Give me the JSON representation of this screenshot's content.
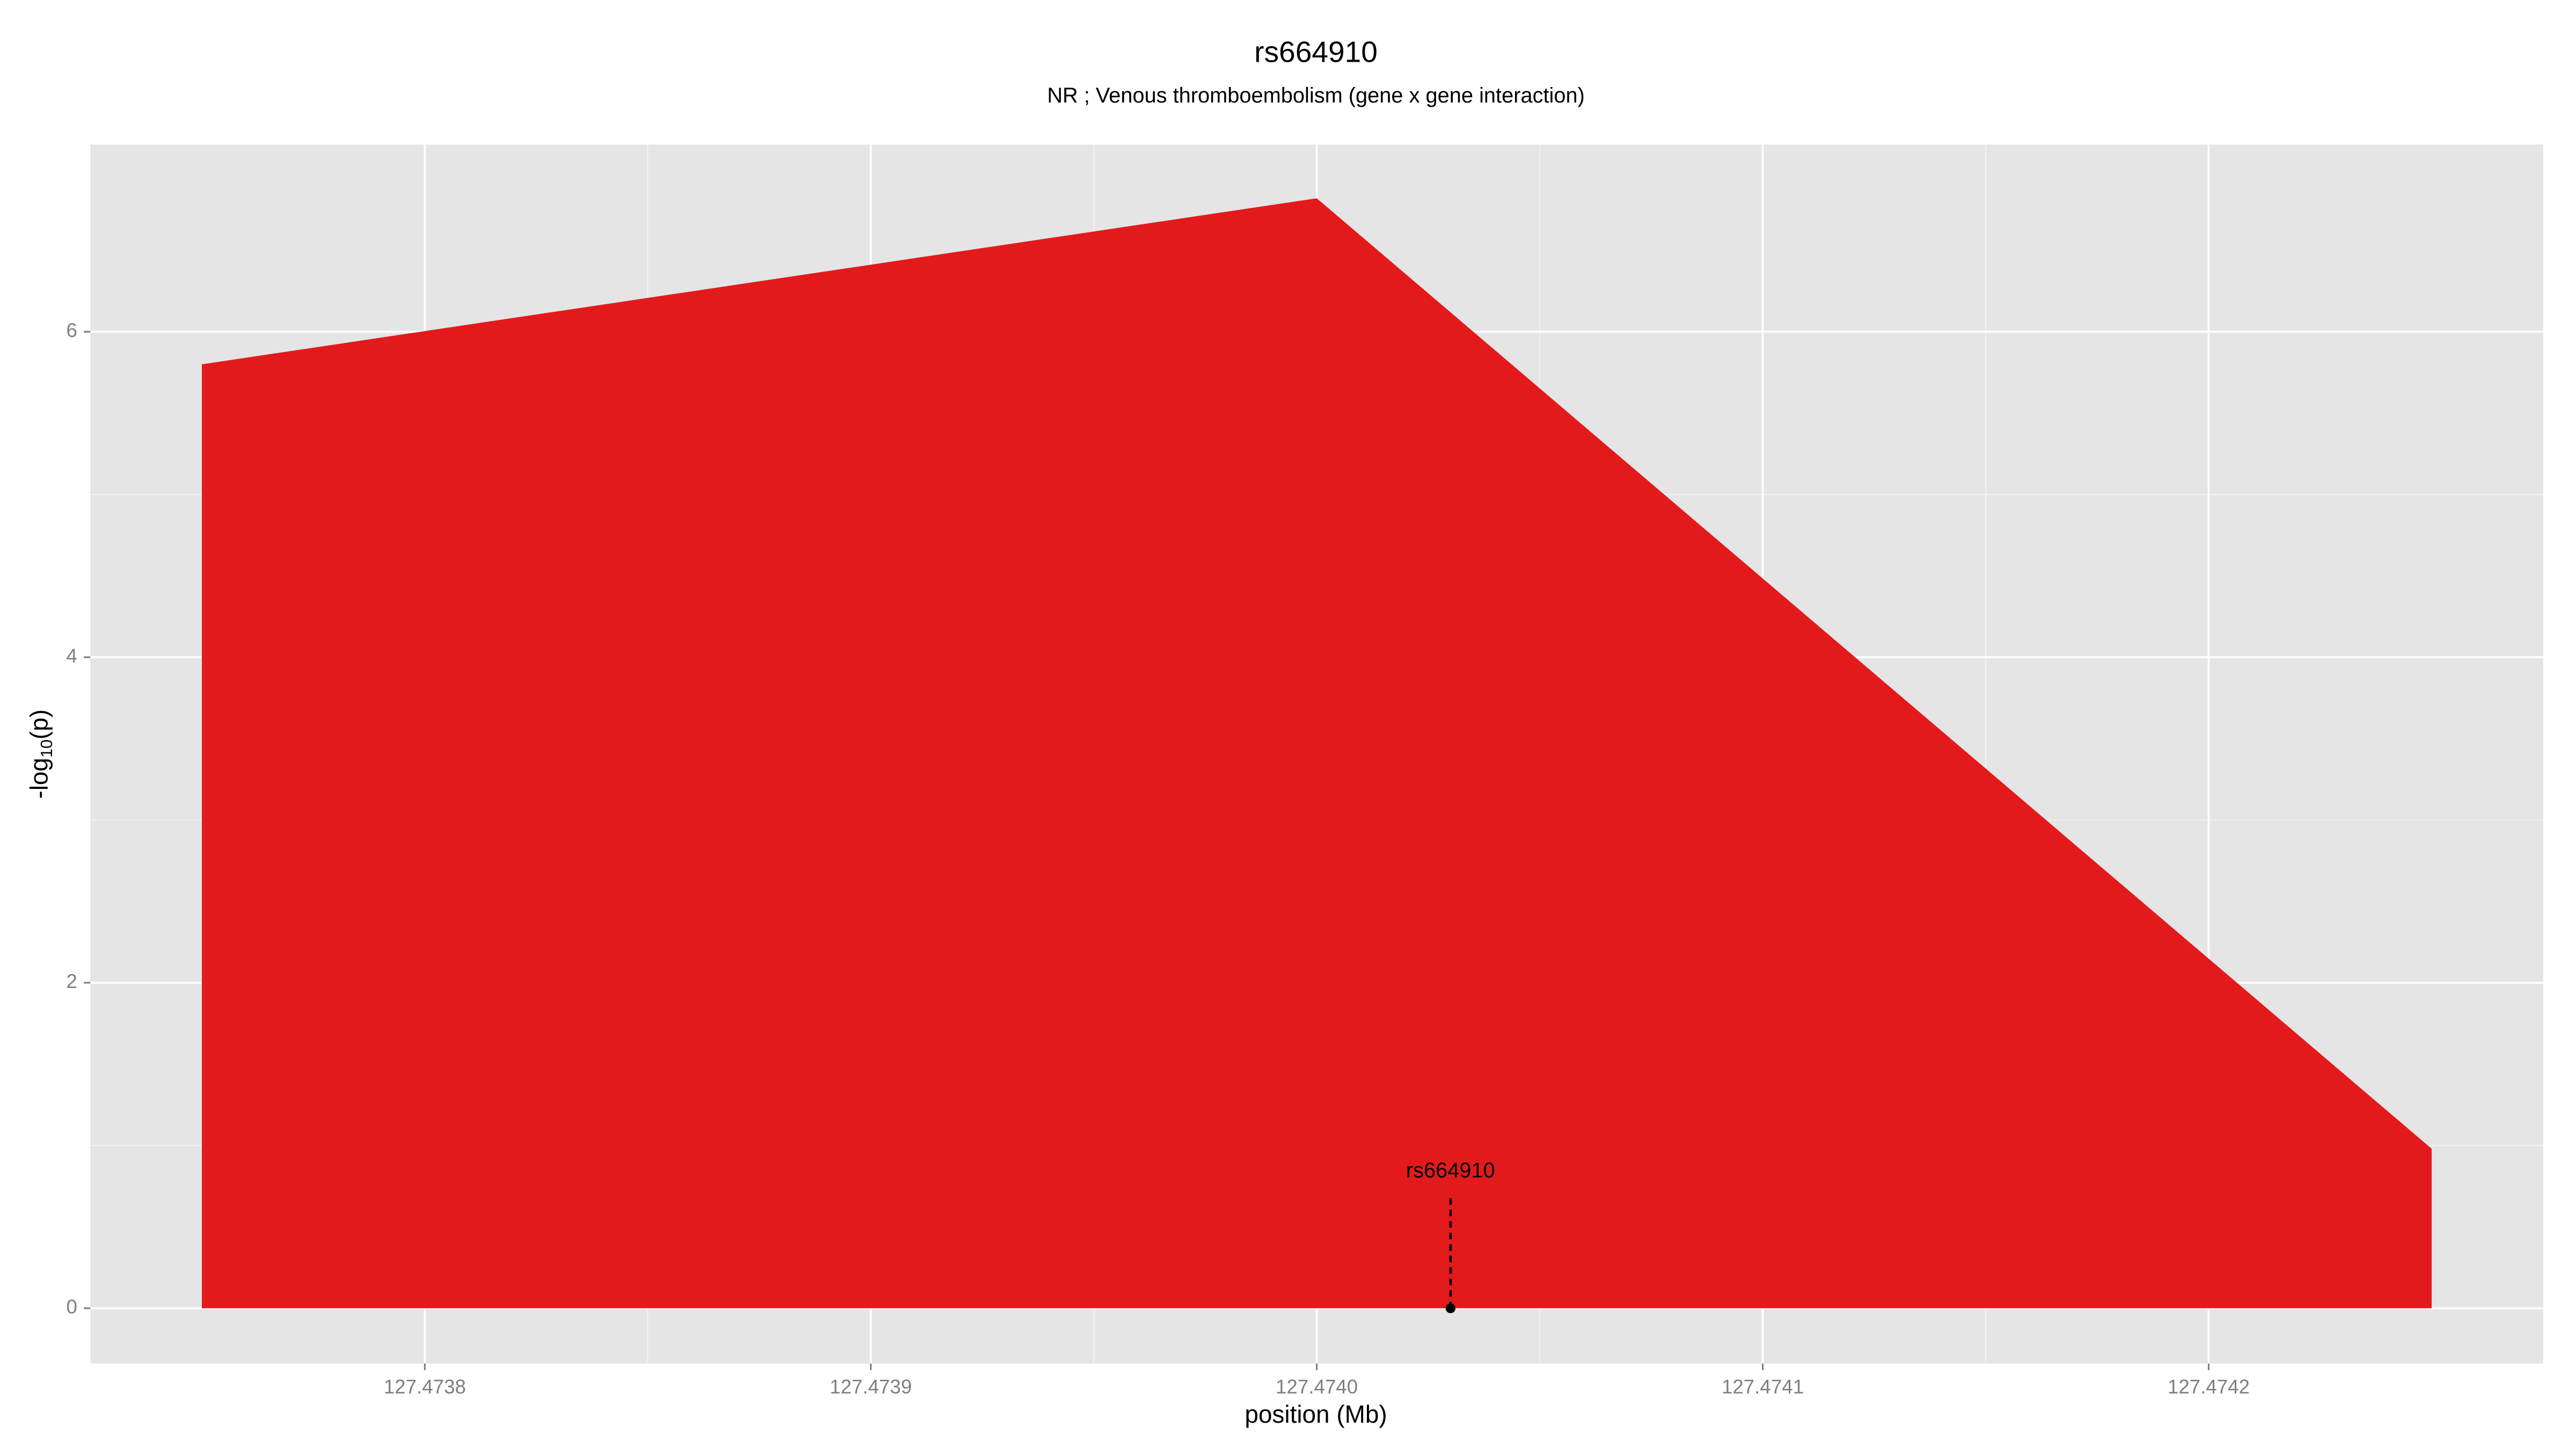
{
  "chart_data": {
    "type": "area",
    "title": "rs664910",
    "subtitle": "NR ; Venous thromboembolism (gene x gene interaction)",
    "xlabel": "position (Mb)",
    "ylabel": [
      "-log",
      "10",
      "(p)"
    ],
    "x": [
      127.47375,
      127.474,
      127.47425
    ],
    "values": [
      5.8,
      6.82,
      0.98
    ],
    "color": "#e31a1c",
    "xlim": [
      127.473725,
      127.474275
    ],
    "ylim": [
      -0.34,
      7.15
    ],
    "xticks": [
      127.4738,
      127.4739,
      {
        "value": 127.474,
        "label": "127.4740"
      },
      127.4741,
      127.4742
    ],
    "yticks": [
      0,
      2,
      4,
      6
    ],
    "grid": true,
    "snp": {
      "label": "rs664910",
      "x": 127.47403,
      "y": 0
    }
  }
}
